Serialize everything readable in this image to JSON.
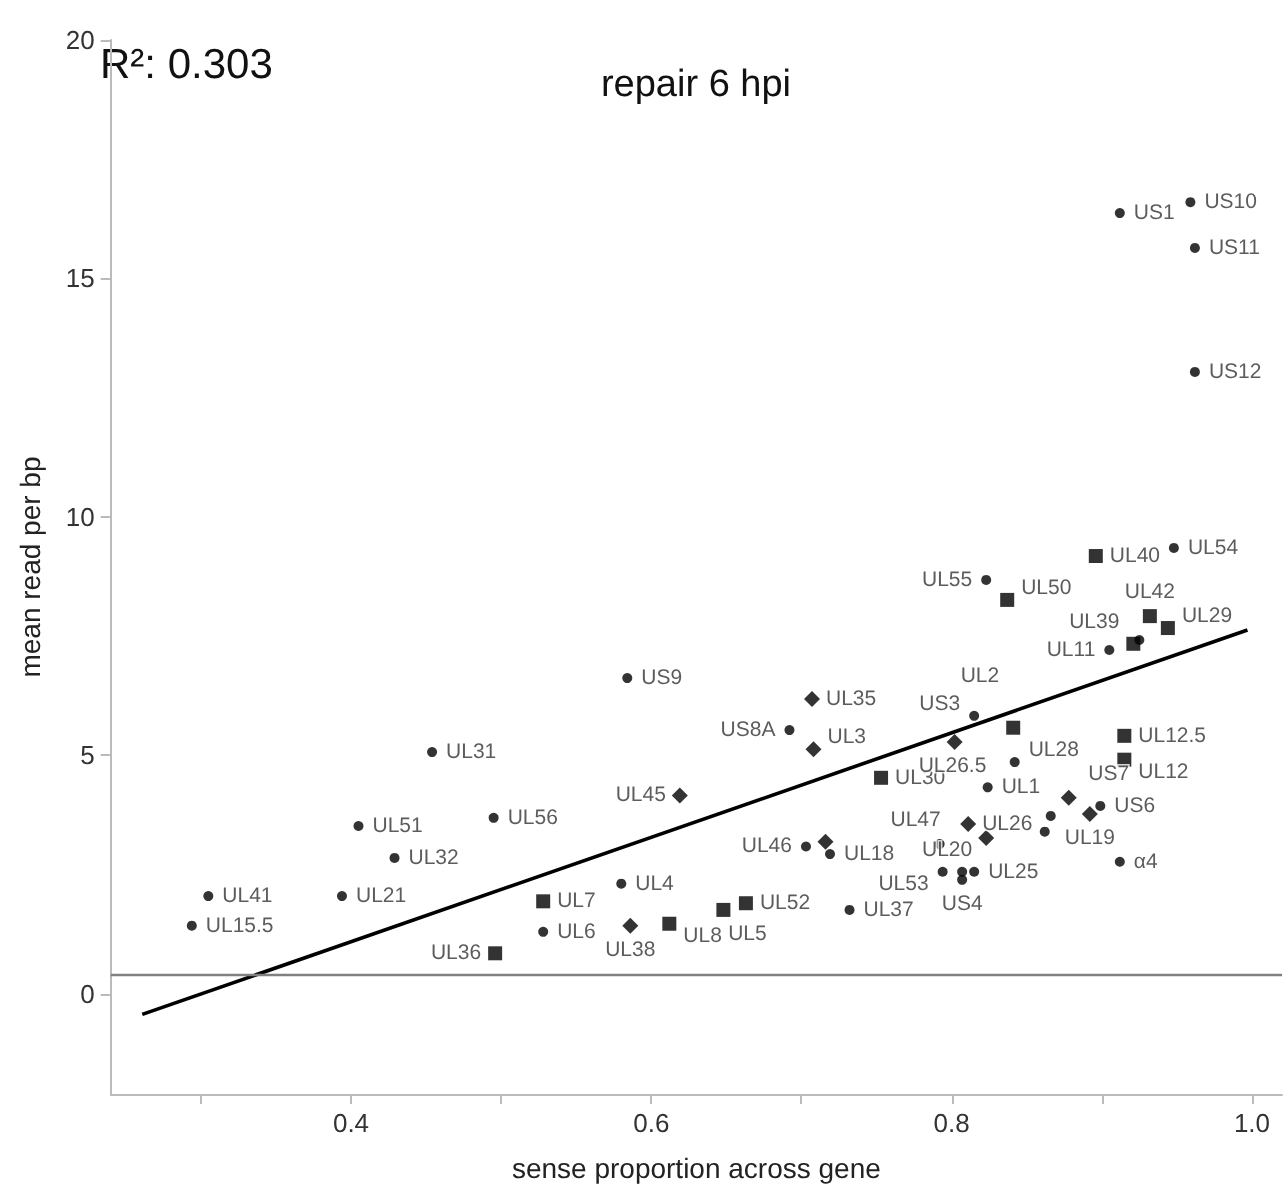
{
  "chart_data": {
    "type": "scatter",
    "title": "repair 6 hpi",
    "xlabel": "sense proportion across gene",
    "ylabel": "mean read per bp",
    "annotations": [
      "R²: 0.303"
    ],
    "xlim": [
      0.24,
      1.02
    ],
    "xticks": [
      {
        "value": 0.3,
        "label": null
      },
      0.4,
      {
        "value": 0.5,
        "label": null
      },
      0.6,
      {
        "value": 0.7,
        "label": null
      },
      0.8,
      {
        "value": 0.9,
        "label": null
      },
      {
        "value": 1.0,
        "label": "1.0"
      }
    ],
    "ylim": [
      -2.1,
      20
    ],
    "yticks": [
      0,
      5,
      10,
      15,
      20
    ],
    "grid": false,
    "ref_lines": [
      {
        "axis": "y",
        "value": 0.42,
        "color": "#808080"
      }
    ],
    "series": [
      {
        "marker": "circle",
        "color": "#000000",
        "x": [
          0.959,
          0.962,
          0.305,
          0.294,
          0.405,
          0.429,
          0.394,
          0.454,
          0.495,
          0.584,
          0.58,
          0.528,
          0.692,
          0.703,
          0.719,
          0.732,
          0.792,
          0.794,
          0.807,
          0.815,
          0.807,
          0.824,
          0.815,
          0.842,
          0.866,
          0.862,
          0.899,
          0.905,
          0.925,
          0.823
        ],
        "values": [
          16.6,
          15.64,
          2.05,
          1.43,
          3.52,
          2.85,
          2.05,
          5.07,
          3.69,
          6.62,
          2.31,
          1.3,
          5.53,
          3.09,
          2.93,
          1.76,
          3.14,
          2.56,
          2.39,
          2.56,
          2.56,
          4.33,
          5.83,
          4.86,
          3.73,
          3.4,
          3.94,
          7.21,
          7.42,
          8.68
        ],
        "value_labels": [
          "US10",
          "US11",
          "UL41",
          "UL15.5",
          "UL51",
          "UL32",
          "UL21",
          "UL31",
          "UL56",
          "US9",
          "UL4",
          "UL6",
          "US8A",
          "UL46",
          "UL18",
          "UL37",
          "UL47",
          "UL53",
          "US4",
          "UL25",
          null,
          "UL1",
          "US3",
          "UL28",
          "UL19",
          null,
          "US6",
          "UL11",
          null,
          "UL55"
        ]
      },
      {
        "marker": "square",
        "color": "#000000",
        "x": [
          0.896,
          0.944,
          0.921,
          0.837,
          0.915,
          0.915,
          0.753,
          0.528,
          0.496,
          0.612,
          0.648,
          0.663,
          0.841,
          0.932
        ],
        "values": [
          9.18,
          7.67,
          7.34,
          8.26,
          5.41,
          4.91,
          4.53,
          1.94,
          0.85,
          1.47,
          1.76,
          1.9,
          5.58,
          7.92
        ],
        "value_labels": [
          "UL40",
          "UL29",
          "UL39",
          "UL50",
          "UL12.5",
          "UL12",
          "UL30",
          "UL7",
          "UL36",
          "UL8",
          "UL5",
          "UL52",
          "UL2",
          "UL42"
        ]
      },
      {
        "marker": "diamond",
        "color": "#000000",
        "x": [
          0.707,
          0.708,
          0.619,
          0.802,
          0.811,
          0.823,
          0.586,
          0.716,
          0.878,
          0.892
        ],
        "values": [
          6.18,
          5.13,
          4.16,
          5.28,
          3.56,
          3.27,
          1.43,
          3.19,
          4.11,
          3.77
        ],
        "value_labels": [
          "UL35",
          "UL3",
          "UL45",
          "UL26.5",
          "UL26",
          "UL20",
          "UL38",
          null,
          "US7",
          null
        ]
      },
      {
        "marker": "circle",
        "color": "#000000",
        "x": [
          0.912,
          0.962,
          0.948,
          0.912
        ],
        "values": [
          16.37,
          13.04,
          9.35,
          2.77
        ],
        "value_labels": [
          "US1",
          "US12",
          "UL54",
          "α4"
        ]
      },
      {
        "type": "line",
        "marker": "none",
        "color": "#000000",
        "x": [
          0.261,
          0.997
        ],
        "values": [
          -0.43,
          7.63
        ]
      }
    ]
  }
}
